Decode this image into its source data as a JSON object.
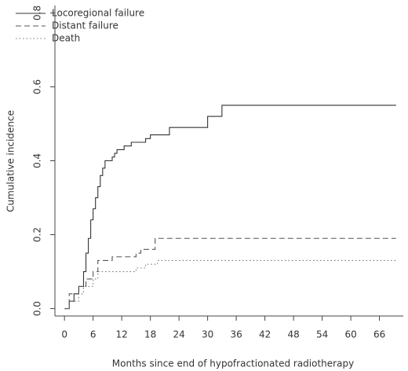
{
  "chart_data": {
    "type": "step",
    "xlabel": "Months since end of hypofractionated radiotherapy",
    "ylabel": "Cumulative incidence",
    "xlim": [
      -2,
      71
    ],
    "ylim": [
      -0.02,
      0.82
    ],
    "xticks": [
      0,
      6,
      12,
      18,
      24,
      30,
      36,
      42,
      48,
      54,
      60,
      66
    ],
    "yticks": [
      {
        "value": 0,
        "label": "0.0"
      },
      0.2,
      0.4,
      0.6,
      0.8
    ],
    "legend": "top-left",
    "series": [
      {
        "name": "Locoregional failure",
        "color": "#333333",
        "dash": "none",
        "x": [
          0,
          1,
          2,
          3,
          4,
          4.5,
          5,
          5.5,
          6,
          6.5,
          7,
          7.5,
          8,
          8.5,
          10,
          10.5,
          11,
          12.5,
          14,
          17,
          18,
          22,
          30,
          33,
          69.5
        ],
        "values": [
          0,
          0.02,
          0.04,
          0.06,
          0.1,
          0.15,
          0.19,
          0.24,
          0.27,
          0.3,
          0.33,
          0.36,
          0.38,
          0.4,
          0.41,
          0.42,
          0.43,
          0.44,
          0.45,
          0.46,
          0.47,
          0.49,
          0.52,
          0.55,
          0.55
        ]
      },
      {
        "name": "Distant failure",
        "color": "#555555",
        "dash": "7,4",
        "x": [
          0,
          1,
          3,
          4.5,
          6,
          7,
          10,
          15,
          16,
          19,
          69.5
        ],
        "values": [
          0,
          0.04,
          0.06,
          0.08,
          0.1,
          0.13,
          0.14,
          0.15,
          0.16,
          0.19,
          0.19
        ]
      },
      {
        "name": "Death",
        "color": "#777777",
        "dash": "1.5,3",
        "x": [
          0,
          1,
          3,
          4,
          6,
          7,
          15,
          17,
          19.5,
          69.5
        ],
        "values": [
          0,
          0.02,
          0.04,
          0.06,
          0.08,
          0.1,
          0.11,
          0.12,
          0.13,
          0.13
        ]
      }
    ]
  }
}
